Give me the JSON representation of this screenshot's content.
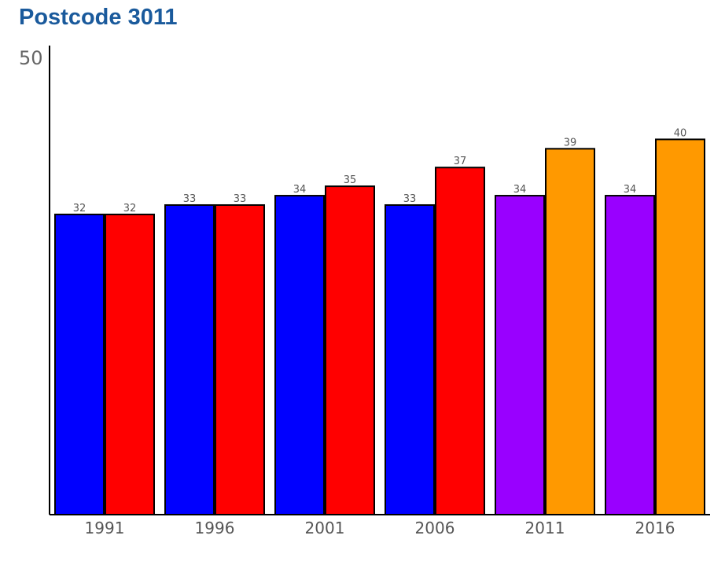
{
  "chart_data": {
    "type": "bar",
    "title": "Postcode 3011",
    "xlabel": "",
    "ylabel": "",
    "ylim": [
      0,
      50
    ],
    "yticks": [
      "50"
    ],
    "grid": false,
    "categories": [
      "1991",
      "1996",
      "2001",
      "2006",
      "2011",
      "2016"
    ],
    "series": [
      {
        "values": [
          32,
          33,
          34,
          33,
          34,
          34
        ],
        "colors": [
          "#0000ff",
          "#0000ff",
          "#0000ff",
          "#0000ff",
          "#9900ff",
          "#9900ff"
        ]
      },
      {
        "values": [
          32,
          33,
          35,
          37,
          39,
          40
        ],
        "colors": [
          "#ff0000",
          "#ff0000",
          "#ff0000",
          "#ff0000",
          "#ff9900",
          "#ff9900"
        ]
      }
    ]
  }
}
